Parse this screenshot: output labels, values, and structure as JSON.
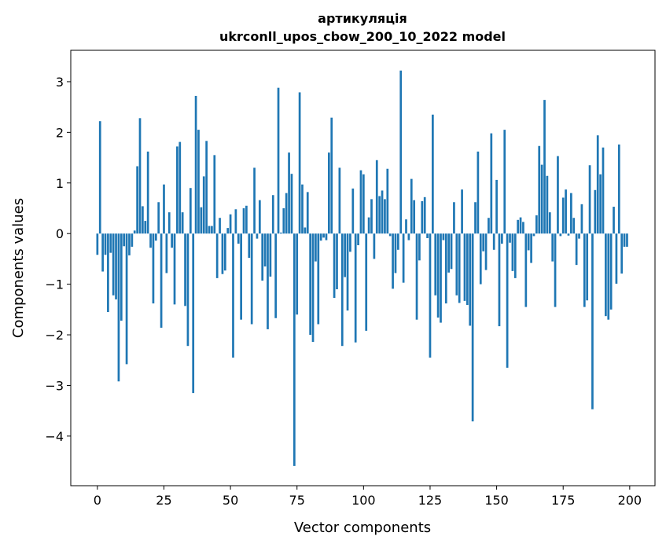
{
  "chart_data": {
    "type": "bar",
    "title": "артикуляція",
    "subtitle": "ukrconll_upos_cbow_200_10_2022 model",
    "xlabel": "Vector components",
    "ylabel": "Components values",
    "xlim": [
      -10,
      209.5
    ],
    "ylim": [
      -4.98,
      3.62
    ],
    "xticks": [
      0,
      25,
      50,
      75,
      100,
      125,
      150,
      175,
      200
    ],
    "xtick_labels": [
      "0",
      "25",
      "50",
      "75",
      "100",
      "125",
      "150",
      "175",
      "200"
    ],
    "yticks": [
      3,
      2,
      1,
      0,
      -1,
      -2,
      -3,
      -4
    ],
    "ytick_labels": [
      "3",
      "2",
      "1",
      "0",
      "−1",
      "−2",
      "−3",
      "−4"
    ],
    "grid": false,
    "color": "#1f77b4",
    "values": [
      -0.42,
      2.22,
      -0.75,
      -0.42,
      -1.55,
      -0.38,
      -1.22,
      -1.3,
      -2.92,
      -1.72,
      -0.25,
      -2.58,
      -0.43,
      -0.26,
      0.06,
      1.33,
      2.28,
      0.54,
      0.25,
      1.62,
      -0.28,
      -1.38,
      -0.14,
      0.62,
      -1.86,
      0.97,
      -0.78,
      0.42,
      -0.28,
      -1.4,
      1.72,
      1.81,
      0.42,
      -1.43,
      -2.22,
      0.9,
      -3.15,
      2.72,
      2.05,
      0.52,
      1.13,
      1.83,
      0.15,
      0.15,
      1.55,
      -0.88,
      0.31,
      -0.8,
      -0.73,
      0.11,
      0.38,
      -2.45,
      0.48,
      -0.2,
      -1.7,
      0.5,
      0.55,
      -0.48,
      -1.79,
      1.3,
      -0.1,
      0.66,
      -0.93,
      -0.65,
      -1.89,
      -0.85,
      0.76,
      -1.67,
      2.88,
      0.02,
      0.5,
      0.8,
      1.6,
      1.18,
      -4.59,
      -1.6,
      2.79,
      0.97,
      0.12,
      0.82,
      -2.0,
      -2.14,
      -0.55,
      -1.79,
      -0.14,
      -0.08,
      -0.13,
      1.6,
      2.29,
      -1.27,
      -1.1,
      1.3,
      -2.22,
      -0.86,
      -1.52,
      -0.36,
      0.89,
      -2.15,
      -0.23,
      1.25,
      1.17,
      -1.92,
      0.32,
      0.68,
      -0.5,
      1.45,
      0.74,
      0.85,
      0.68,
      1.28,
      -0.05,
      -1.09,
      -0.78,
      -0.32,
      3.22,
      -0.97,
      0.28,
      -0.13,
      1.08,
      0.66,
      -1.7,
      -0.53,
      0.64,
      0.72,
      -0.09,
      -2.45,
      2.35,
      -1.22,
      -1.66,
      -1.76,
      -0.13,
      -1.38,
      -0.77,
      -0.7,
      0.62,
      -1.22,
      -1.37,
      0.87,
      -1.33,
      -1.41,
      -1.82,
      -3.71,
      0.62,
      1.62,
      -1.0,
      -0.35,
      -0.72,
      0.31,
      1.98,
      -0.32,
      1.06,
      -1.83,
      -0.2,
      2.05,
      -2.65,
      -0.18,
      -0.74,
      -0.88,
      0.27,
      0.32,
      0.23,
      -1.45,
      -0.33,
      -0.58,
      -0.05,
      0.36,
      1.73,
      1.36,
      2.64,
      1.14,
      0.42,
      -0.55,
      -1.45,
      1.53,
      -0.05,
      0.71,
      0.87,
      -0.04,
      0.8,
      0.31,
      -0.62,
      -0.1,
      0.58,
      -1.45,
      -1.32,
      1.35,
      -3.47,
      0.86,
      1.94,
      1.17,
      1.7,
      -1.63,
      -1.7,
      -1.5,
      0.53,
      -0.99,
      1.76,
      -0.79,
      -0.26,
      -0.26
    ]
  }
}
